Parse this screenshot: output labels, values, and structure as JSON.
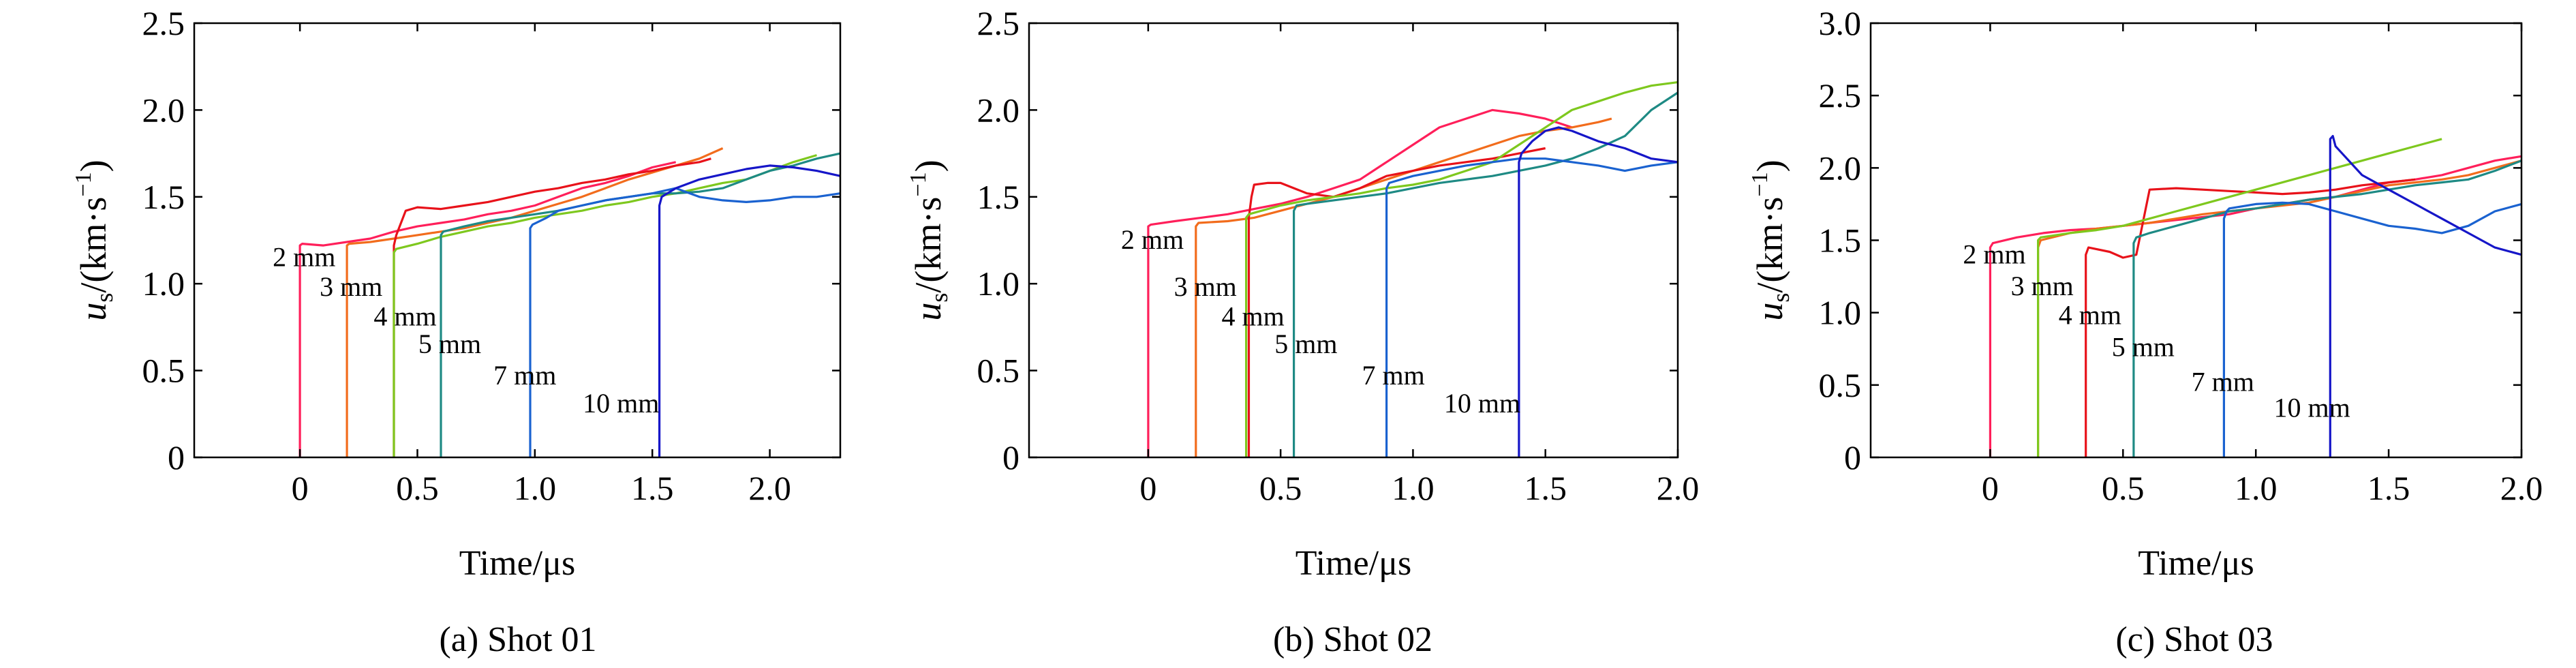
{
  "chart_data": [
    {
      "type": "line",
      "caption": "(a) Shot 01",
      "xlabel": "Time/μs",
      "ylabel_main": "u",
      "ylabel_sub": "s",
      "ylabel_unit": "/(km·s",
      "ylabel_exp": "−1",
      "ylabel_close": ")",
      "xlim": [
        -0.45,
        2.3
      ],
      "ylim": [
        0,
        2.5
      ],
      "xticks": [
        0,
        0.5,
        1.0,
        1.5,
        2.0
      ],
      "xtick_labels": [
        "0",
        "0.5",
        "1.0",
        "1.5",
        "2.0"
      ],
      "yticks": [
        0,
        0.5,
        1.0,
        1.5,
        2.0,
        2.5
      ],
      "ytick_labels": [
        "0",
        "0.5",
        "1.0",
        "1.5",
        "2.0",
        "2.5"
      ],
      "series": [
        {
          "name": "2 mm",
          "color": "#ff1f5a",
          "label_at": [
            0.0,
            1.1
          ],
          "x": [
            0.0,
            0.0,
            0.01,
            0.1,
            0.2,
            0.3,
            0.35,
            0.4,
            0.5,
            0.6,
            0.7,
            0.8,
            0.9,
            1.0,
            1.1,
            1.2,
            1.3,
            1.4,
            1.5,
            1.6
          ],
          "y": [
            0.0,
            1.22,
            1.23,
            1.22,
            1.24,
            1.26,
            1.28,
            1.3,
            1.33,
            1.35,
            1.37,
            1.4,
            1.42,
            1.45,
            1.5,
            1.55,
            1.58,
            1.62,
            1.67,
            1.7
          ]
        },
        {
          "name": "3 mm",
          "color": "#f26c1c",
          "label_at": [
            0.2,
            0.93
          ],
          "x": [
            0.2,
            0.2,
            0.21,
            0.3,
            0.4,
            0.5,
            0.6,
            0.7,
            0.8,
            0.9,
            1.0,
            1.1,
            1.2,
            1.3,
            1.4,
            1.5,
            1.6,
            1.7,
            1.8
          ],
          "y": [
            0.0,
            1.22,
            1.23,
            1.24,
            1.26,
            1.28,
            1.3,
            1.32,
            1.35,
            1.38,
            1.42,
            1.46,
            1.5,
            1.55,
            1.6,
            1.64,
            1.68,
            1.72,
            1.78
          ]
        },
        {
          "name": "4 mm",
          "color": "#e8121a",
          "label_at": [
            0.43,
            0.76
          ],
          "x": [
            0.4,
            0.4,
            0.41,
            0.45,
            0.5,
            0.6,
            0.7,
            0.8,
            0.9,
            1.0,
            1.1,
            1.2,
            1.3,
            1.4,
            1.5,
            1.6,
            1.7,
            1.75
          ],
          "y": [
            0.0,
            1.22,
            1.28,
            1.42,
            1.44,
            1.43,
            1.45,
            1.47,
            1.5,
            1.53,
            1.55,
            1.58,
            1.6,
            1.63,
            1.65,
            1.68,
            1.7,
            1.72
          ]
        },
        {
          "name": "5 mm",
          "color": "#7ec81e",
          "label_at": [
            0.62,
            0.6
          ],
          "x": [
            0.4,
            0.4,
            0.41,
            0.5,
            0.6,
            0.7,
            0.8,
            0.9,
            1.0,
            1.1,
            1.2,
            1.3,
            1.4,
            1.5,
            1.6,
            1.7,
            1.8,
            1.9,
            2.0,
            2.1,
            2.2
          ],
          "y": [
            0.0,
            1.18,
            1.2,
            1.23,
            1.27,
            1.3,
            1.33,
            1.35,
            1.38,
            1.4,
            1.42,
            1.45,
            1.47,
            1.5,
            1.52,
            1.55,
            1.58,
            1.6,
            1.65,
            1.7,
            1.74
          ]
        },
        {
          "name": "7 mm",
          "color": "#1e8a84",
          "label_at": [
            0.94,
            0.42
          ],
          "x": [
            0.6,
            0.6,
            0.61,
            0.7,
            0.8,
            0.9,
            1.0,
            1.1,
            1.2,
            1.3,
            1.4,
            1.5,
            1.6,
            1.7,
            1.8,
            1.9,
            2.0,
            2.1,
            2.2,
            2.3
          ],
          "y": [
            0.0,
            1.28,
            1.3,
            1.33,
            1.36,
            1.38,
            1.4,
            1.42,
            1.45,
            1.48,
            1.5,
            1.52,
            1.52,
            1.53,
            1.55,
            1.6,
            1.65,
            1.68,
            1.72,
            1.75
          ]
        },
        {
          "name": "10 mm",
          "color": "#1a62d0",
          "label_at": [
            1.32,
            0.26
          ],
          "x": [
            0.98,
            0.98,
            0.99,
            1.05,
            1.1,
            1.2,
            1.3,
            1.4,
            1.5,
            1.6,
            1.7,
            1.8,
            1.9,
            2.0,
            2.1,
            2.2,
            2.3
          ],
          "y": [
            0.0,
            1.32,
            1.34,
            1.38,
            1.42,
            1.45,
            1.48,
            1.5,
            1.52,
            1.55,
            1.5,
            1.48,
            1.47,
            1.48,
            1.5,
            1.5,
            1.52
          ]
        },
        {
          "name": "",
          "color": "#1616c8",
          "label_at": null,
          "x": [
            1.53,
            1.53,
            1.54,
            1.6,
            1.7,
            1.8,
            1.9,
            2.0,
            2.1,
            2.2,
            2.3
          ],
          "y": [
            0.0,
            1.45,
            1.5,
            1.55,
            1.6,
            1.63,
            1.66,
            1.68,
            1.67,
            1.65,
            1.62
          ]
        }
      ]
    },
    {
      "type": "line",
      "caption": "(b) Shot 02",
      "xlabel": "Time/μs",
      "ylabel_main": "u",
      "ylabel_sub": "s",
      "ylabel_unit": "/(km·s",
      "ylabel_exp": "−1",
      "ylabel_close": ")",
      "xlim": [
        -0.45,
        2.0
      ],
      "ylim": [
        0,
        2.5
      ],
      "xticks": [
        0,
        0.5,
        1.0,
        1.5,
        2.0
      ],
      "xtick_labels": [
        "0",
        "0.5",
        "1.0",
        "1.5",
        "2.0"
      ],
      "yticks": [
        0,
        0.5,
        1.0,
        1.5,
        2.0,
        2.5
      ],
      "ytick_labels": [
        "0",
        "0.5",
        "1.0",
        "1.5",
        "2.0",
        "2.5"
      ],
      "series": [
        {
          "name": "2 mm",
          "color": "#ff1f5a",
          "label_at": [
            0.0,
            1.2
          ],
          "x": [
            0.0,
            0.0,
            0.01,
            0.1,
            0.2,
            0.3,
            0.4,
            0.5,
            0.6,
            0.7,
            0.8,
            0.9,
            1.0,
            1.1,
            1.2,
            1.3,
            1.4,
            1.5,
            1.6
          ],
          "y": [
            0.0,
            1.33,
            1.34,
            1.36,
            1.38,
            1.4,
            1.43,
            1.46,
            1.5,
            1.55,
            1.6,
            1.7,
            1.8,
            1.9,
            1.95,
            2.0,
            1.98,
            1.95,
            1.9
          ]
        },
        {
          "name": "3 mm",
          "color": "#f26c1c",
          "label_at": [
            0.2,
            0.93
          ],
          "x": [
            0.18,
            0.18,
            0.19,
            0.3,
            0.4,
            0.5,
            0.6,
            0.7,
            0.8,
            0.9,
            1.0,
            1.1,
            1.2,
            1.3,
            1.4,
            1.5,
            1.6,
            1.7,
            1.75
          ],
          "y": [
            0.0,
            1.33,
            1.35,
            1.36,
            1.38,
            1.42,
            1.46,
            1.5,
            1.55,
            1.6,
            1.65,
            1.7,
            1.75,
            1.8,
            1.85,
            1.88,
            1.9,
            1.93,
            1.95
          ]
        },
        {
          "name": "4 mm",
          "color": "#e8121a",
          "label_at": [
            0.38,
            0.76
          ],
          "x": [
            0.38,
            0.38,
            0.39,
            0.4,
            0.45,
            0.5,
            0.6,
            0.7,
            0.8,
            0.9,
            1.0,
            1.1,
            1.2,
            1.3,
            1.4,
            1.5
          ],
          "y": [
            0.0,
            1.38,
            1.5,
            1.57,
            1.58,
            1.58,
            1.52,
            1.5,
            1.55,
            1.62,
            1.65,
            1.68,
            1.7,
            1.72,
            1.75,
            1.78
          ]
        },
        {
          "name": "5 mm",
          "color": "#7ec81e",
          "label_at": [
            0.58,
            0.6
          ],
          "x": [
            0.37,
            0.37,
            0.38,
            0.5,
            0.6,
            0.7,
            0.8,
            0.9,
            1.0,
            1.1,
            1.2,
            1.3,
            1.4,
            1.5,
            1.6,
            1.7,
            1.8,
            1.9,
            2.0
          ],
          "y": [
            0.0,
            1.38,
            1.4,
            1.45,
            1.48,
            1.5,
            1.52,
            1.55,
            1.57,
            1.6,
            1.65,
            1.7,
            1.8,
            1.9,
            2.0,
            2.05,
            2.1,
            2.14,
            2.16
          ]
        },
        {
          "name": "7 mm",
          "color": "#1e8a84",
          "label_at": [
            0.91,
            0.42
          ],
          "x": [
            0.55,
            0.55,
            0.56,
            0.6,
            0.7,
            0.8,
            0.9,
            1.0,
            1.1,
            1.2,
            1.3,
            1.4,
            1.5,
            1.6,
            1.7,
            1.8,
            1.9,
            2.0
          ],
          "y": [
            0.0,
            1.42,
            1.45,
            1.46,
            1.48,
            1.5,
            1.52,
            1.55,
            1.58,
            1.6,
            1.62,
            1.65,
            1.68,
            1.72,
            1.78,
            1.85,
            2.0,
            2.1
          ]
        },
        {
          "name": "10 mm",
          "color": "#1a62d0",
          "label_at": [
            1.22,
            0.26
          ],
          "x": [
            0.9,
            0.9,
            0.91,
            1.0,
            1.1,
            1.2,
            1.3,
            1.4,
            1.5,
            1.6,
            1.7,
            1.8,
            1.9,
            2.0
          ],
          "y": [
            0.0,
            1.55,
            1.58,
            1.62,
            1.65,
            1.68,
            1.7,
            1.72,
            1.72,
            1.7,
            1.68,
            1.65,
            1.68,
            1.7
          ]
        },
        {
          "name": "",
          "color": "#1616c8",
          "label_at": null,
          "x": [
            1.4,
            1.4,
            1.41,
            1.45,
            1.5,
            1.55,
            1.6,
            1.7,
            1.8,
            1.9,
            2.0
          ],
          "y": [
            0.0,
            1.7,
            1.75,
            1.82,
            1.88,
            1.9,
            1.88,
            1.82,
            1.78,
            1.72,
            1.7
          ]
        }
      ]
    },
    {
      "type": "line",
      "caption": "(c) Shot 03",
      "xlabel": "Time/μs",
      "ylabel_main": "u",
      "ylabel_sub": "s",
      "ylabel_unit": "/(km·s",
      "ylabel_exp": "−1",
      "ylabel_close": ")",
      "xlim": [
        -0.45,
        2.0
      ],
      "ylim": [
        0,
        3.0
      ],
      "xticks": [
        0,
        0.5,
        1.0,
        1.5,
        2.0
      ],
      "xtick_labels": [
        "0",
        "0.5",
        "1.0",
        "1.5",
        "2.0"
      ],
      "yticks": [
        0,
        0.5,
        1.0,
        1.5,
        2.0,
        2.5,
        3.0
      ],
      "ytick_labels": [
        "0",
        "0.5",
        "1.0",
        "1.5",
        "2.0",
        "2.5",
        "3.0"
      ],
      "series": [
        {
          "name": "2 mm",
          "color": "#ff1f5a",
          "label_at": [
            0.0,
            1.34
          ],
          "x": [
            0.0,
            0.0,
            0.01,
            0.1,
            0.2,
            0.3,
            0.4,
            0.5,
            0.6,
            0.7,
            0.8,
            0.9,
            1.0,
            1.1,
            1.2,
            1.3,
            1.4,
            1.5,
            1.6,
            1.7,
            1.8,
            1.9,
            2.0
          ],
          "y": [
            0.0,
            1.45,
            1.48,
            1.52,
            1.55,
            1.57,
            1.58,
            1.6,
            1.62,
            1.64,
            1.66,
            1.68,
            1.72,
            1.75,
            1.78,
            1.8,
            1.85,
            1.9,
            1.92,
            1.95,
            2.0,
            2.05,
            2.08
          ]
        },
        {
          "name": "3 mm",
          "color": "#f26c1c",
          "label_at": [
            0.18,
            1.12
          ],
          "x": [
            0.18,
            0.18,
            0.19,
            0.3,
            0.4,
            0.5,
            0.6,
            0.7,
            0.8,
            0.9,
            1.0,
            1.1,
            1.2,
            1.3,
            1.4,
            1.5,
            1.6,
            1.7,
            1.8,
            1.9,
            2.0
          ],
          "y": [
            0.0,
            1.45,
            1.5,
            1.55,
            1.58,
            1.6,
            1.62,
            1.65,
            1.68,
            1.7,
            1.72,
            1.74,
            1.76,
            1.8,
            1.84,
            1.88,
            1.9,
            1.92,
            1.95,
            2.0,
            2.05
          ]
        },
        {
          "name": "4 mm",
          "color": "#e8121a",
          "label_at": [
            0.36,
            0.92
          ],
          "x": [
            0.36,
            0.36,
            0.37,
            0.45,
            0.5,
            0.55,
            0.6,
            0.7,
            0.8,
            0.9,
            1.0,
            1.1,
            1.2,
            1.3,
            1.4,
            1.5,
            1.6
          ],
          "y": [
            0.0,
            1.4,
            1.45,
            1.42,
            1.38,
            1.4,
            1.85,
            1.86,
            1.85,
            1.84,
            1.83,
            1.82,
            1.83,
            1.85,
            1.88,
            1.9,
            1.92
          ]
        },
        {
          "name": "5 mm",
          "color": "#7ec81e",
          "label_at": [
            0.56,
            0.7
          ],
          "x": [
            0.18,
            0.18,
            0.19,
            0.3,
            0.4,
            0.5,
            0.6,
            0.7,
            0.8,
            0.9,
            1.0,
            1.1,
            1.2,
            1.3,
            1.4,
            1.5,
            1.6,
            1.7
          ],
          "y": [
            0.0,
            1.5,
            1.52,
            1.55,
            1.57,
            1.6,
            1.65,
            1.7,
            1.75,
            1.8,
            1.85,
            1.9,
            1.95,
            2.0,
            2.05,
            2.1,
            2.15,
            2.2
          ]
        },
        {
          "name": "7 mm",
          "color": "#1e8a84",
          "label_at": [
            0.86,
            0.46
          ],
          "x": [
            0.54,
            0.54,
            0.55,
            0.6,
            0.7,
            0.8,
            0.9,
            1.0,
            1.1,
            1.2,
            1.3,
            1.4,
            1.5,
            1.6,
            1.7,
            1.8,
            1.9,
            2.0
          ],
          "y": [
            0.0,
            1.48,
            1.52,
            1.55,
            1.6,
            1.65,
            1.7,
            1.72,
            1.75,
            1.78,
            1.8,
            1.82,
            1.85,
            1.88,
            1.9,
            1.92,
            1.98,
            2.05
          ]
        },
        {
          "name": "10 mm",
          "color": "#1a62d0",
          "label_at": [
            1.17,
            0.28
          ],
          "x": [
            0.88,
            0.88,
            0.89,
            0.9,
            1.0,
            1.1,
            1.2,
            1.3,
            1.4,
            1.5,
            1.6,
            1.7,
            1.8,
            1.9,
            2.0
          ],
          "y": [
            0.0,
            1.65,
            1.7,
            1.72,
            1.75,
            1.76,
            1.75,
            1.7,
            1.65,
            1.6,
            1.58,
            1.55,
            1.6,
            1.7,
            1.75
          ]
        },
        {
          "name": "",
          "color": "#1616c8",
          "label_at": null,
          "x": [
            1.28,
            1.28,
            1.29,
            1.3,
            1.35,
            1.4,
            1.5,
            1.6,
            1.7,
            1.8,
            1.9,
            2.0
          ],
          "y": [
            0.0,
            2.2,
            2.22,
            2.15,
            2.05,
            1.95,
            1.85,
            1.75,
            1.65,
            1.55,
            1.45,
            1.4
          ]
        }
      ]
    }
  ]
}
